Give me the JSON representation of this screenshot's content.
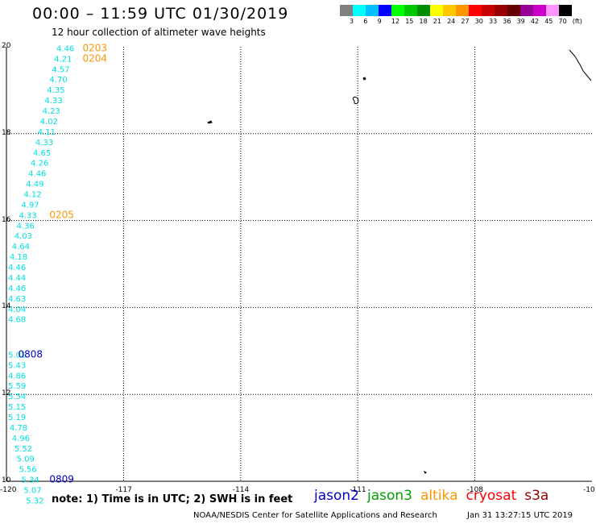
{
  "title": "00:00 – 11:59 UTC 01/30/2019",
  "subtitle": "12 hour collection of altimeter wave heights",
  "legend": {
    "colors": [
      "#808080",
      "#00ffff",
      "#00bfff",
      "#0000ff",
      "#00ff00",
      "#00c800",
      "#008c00",
      "#ffff00",
      "#ffc800",
      "#ff9600",
      "#ff0000",
      "#c80000",
      "#960000",
      "#640000",
      "#960096",
      "#c800c8",
      "#ff96ff",
      "#000000"
    ],
    "labels": [
      "3",
      "6",
      "9",
      "12",
      "15",
      "18",
      "21",
      "24",
      "27",
      "30",
      "33",
      "36",
      "39",
      "42",
      "45",
      "70",
      "(ft)"
    ]
  },
  "lat_labels": [
    "20",
    "18",
    "16",
    "14",
    "12",
    "10"
  ],
  "lon_labels": [
    "-120",
    "-117",
    "-114",
    "-111",
    "-108",
    "-10"
  ],
  "wave_heights": [
    {
      "lat": 19.9,
      "lon": -118.72,
      "v": "4.46"
    },
    {
      "lat": 19.66,
      "lon": -118.78,
      "v": "4.21"
    },
    {
      "lat": 19.42,
      "lon": -118.84,
      "v": "4.57"
    },
    {
      "lat": 19.18,
      "lon": -118.9,
      "v": "4.70"
    },
    {
      "lat": 18.94,
      "lon": -118.96,
      "v": "4.35"
    },
    {
      "lat": 18.7,
      "lon": -119.02,
      "v": "4.33"
    },
    {
      "lat": 18.46,
      "lon": -119.08,
      "v": "4.23"
    },
    {
      "lat": 18.22,
      "lon": -119.14,
      "v": "4.02"
    },
    {
      "lat": 17.98,
      "lon": -119.2,
      "v": "4.11"
    },
    {
      "lat": 17.74,
      "lon": -119.26,
      "v": "4.33"
    },
    {
      "lat": 17.5,
      "lon": -119.32,
      "v": "4.65"
    },
    {
      "lat": 17.26,
      "lon": -119.38,
      "v": "4.26"
    },
    {
      "lat": 17.02,
      "lon": -119.44,
      "v": "4.46"
    },
    {
      "lat": 16.78,
      "lon": -119.5,
      "v": "4.49"
    },
    {
      "lat": 16.54,
      "lon": -119.56,
      "v": "4.12"
    },
    {
      "lat": 16.3,
      "lon": -119.62,
      "v": "4.97"
    },
    {
      "lat": 16.06,
      "lon": -119.68,
      "v": "4.33"
    },
    {
      "lat": 15.82,
      "lon": -119.74,
      "v": "4.36"
    },
    {
      "lat": 15.58,
      "lon": -119.8,
      "v": "4.03"
    },
    {
      "lat": 15.34,
      "lon": -119.86,
      "v": "4.64"
    },
    {
      "lat": 15.1,
      "lon": -119.92,
      "v": "4.18"
    },
    {
      "lat": 14.86,
      "lon": -119.98,
      "v": "4.46"
    },
    {
      "lat": 14.62,
      "lon": -120.04,
      "v": "4.44"
    },
    {
      "lat": 14.38,
      "lon": -120.1,
      "v": "4.46"
    },
    {
      "lat": 14.14,
      "lon": -120.16,
      "v": "4.63"
    },
    {
      "lat": 13.9,
      "lon": -120.22,
      "v": "4.04"
    },
    {
      "lat": 13.66,
      "lon": -120.28,
      "v": "4.68"
    },
    {
      "lat": 12.85,
      "lon": -120.34,
      "v": "5.01"
    },
    {
      "lat": 12.61,
      "lon": -120.28,
      "v": "5.43"
    },
    {
      "lat": 12.37,
      "lon": -120.22,
      "v": "4.86"
    },
    {
      "lat": 12.13,
      "lon": -120.16,
      "v": "5.59"
    },
    {
      "lat": 11.89,
      "lon": -120.1,
      "v": "5.54"
    },
    {
      "lat": 11.65,
      "lon": -120.04,
      "v": "5.15"
    },
    {
      "lat": 11.41,
      "lon": -119.98,
      "v": "5.19"
    },
    {
      "lat": 11.17,
      "lon": -119.92,
      "v": "4.78"
    },
    {
      "lat": 10.93,
      "lon": -119.86,
      "v": "4.96"
    },
    {
      "lat": 10.69,
      "lon": -119.8,
      "v": "5.52"
    },
    {
      "lat": 10.45,
      "lon": -119.74,
      "v": "5.09"
    },
    {
      "lat": 10.21,
      "lon": -119.68,
      "v": "5.56"
    },
    {
      "lat": 9.97,
      "lon": -119.62,
      "v": "5.34"
    },
    {
      "lat": 9.73,
      "lon": -119.56,
      "v": "5.07"
    },
    {
      "lat": 9.49,
      "lon": -119.5,
      "v": "5.32"
    }
  ],
  "pass_times": [
    {
      "lat": 19.9,
      "lon": -118.05,
      "v": "0203",
      "color": "#ff9600"
    },
    {
      "lat": 19.66,
      "lon": -118.05,
      "v": "0204",
      "color": "#ff9600"
    },
    {
      "lat": 16.06,
      "lon": -118.9,
      "v": "0205",
      "color": "#ff9600"
    },
    {
      "lat": 12.85,
      "lon": -119.7,
      "v": "0808",
      "color": "#0000c8"
    },
    {
      "lat": 9.97,
      "lon": -118.9,
      "v": "0809",
      "color": "#0000c8"
    }
  ],
  "note": "note: 1) Time is in UTC; 2) SWH is in feet",
  "satellites": [
    {
      "name": "jason2",
      "color": "#0000c8"
    },
    {
      "name": "jason3",
      "color": "#00a000"
    },
    {
      "name": "altika",
      "color": "#ff9600"
    },
    {
      "name": "cryosat",
      "color": "#ff0000"
    },
    {
      "name": "s3a",
      "color": "#960000"
    }
  ],
  "credit": "NOAA/NESDIS Center for Satellite Applications and Research",
  "created": "Jan 31 13:27:15 UTC 2019"
}
